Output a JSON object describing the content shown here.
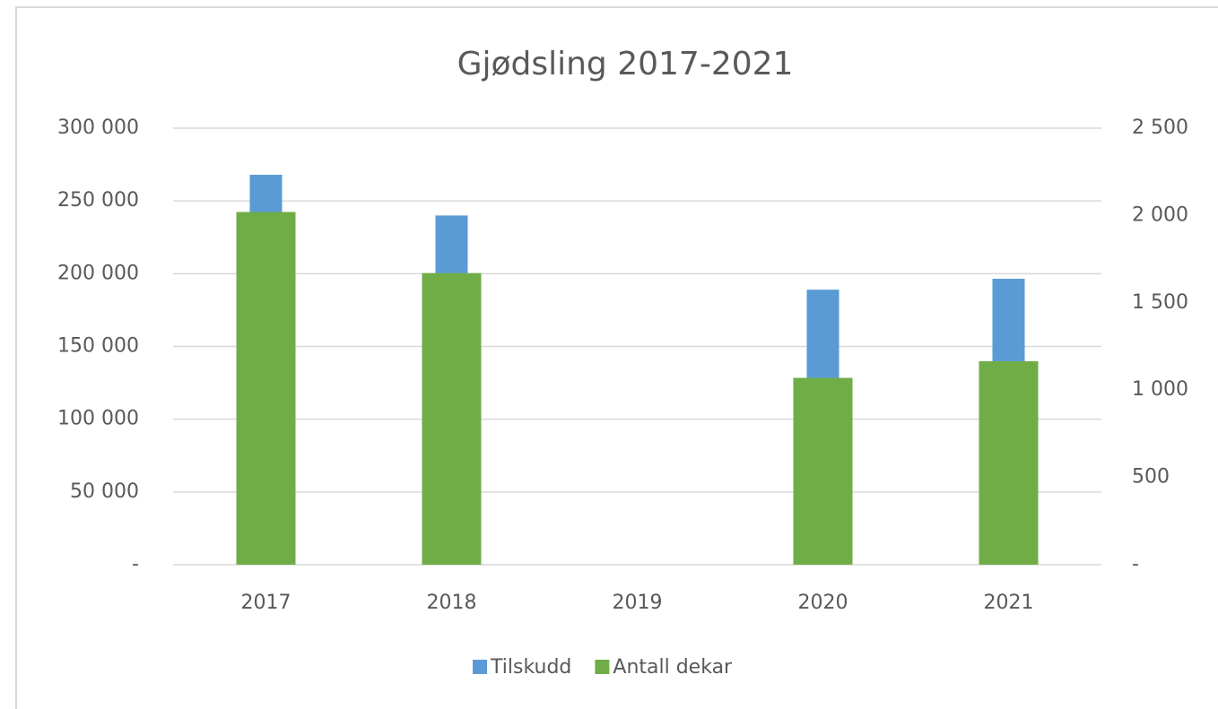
{
  "chart_data": {
    "type": "bar",
    "title": "Gjødsling 2017-2021",
    "categories": [
      "2017",
      "2018",
      "2019",
      "2020",
      "2021"
    ],
    "series": [
      {
        "name": "Tilskudd",
        "color": "#5b9bd5",
        "values": [
          268000,
          240000,
          null,
          189000,
          196500
        ]
      },
      {
        "name": "Antall dekar",
        "color": "#70ad47",
        "axis": "y2",
        "values": [
          2020,
          1670,
          null,
          1070,
          1165
        ]
      }
    ],
    "ylim": [
      0,
      300000
    ],
    "yticks": [
      {
        "value": 0,
        "label": "-"
      },
      {
        "value": 50000,
        "label": "50 000"
      },
      {
        "value": 100000,
        "label": "100 000"
      },
      {
        "value": 150000,
        "label": "150 000"
      },
      {
        "value": 200000,
        "label": "200 000"
      },
      {
        "value": 250000,
        "label": "250 000"
      },
      {
        "value": 300000,
        "label": "300 000"
      }
    ],
    "y2lim": [
      0,
      2500
    ],
    "y2ticks": [
      {
        "value": 0,
        "label": "-"
      },
      500,
      {
        "value": 1000,
        "label": "1 000"
      },
      {
        "value": 1500,
        "label": "1 500"
      },
      {
        "value": 2000,
        "label": "2 000"
      },
      {
        "value": 2500,
        "label": "2 500"
      }
    ],
    "grid": true,
    "legend": "bottom"
  }
}
